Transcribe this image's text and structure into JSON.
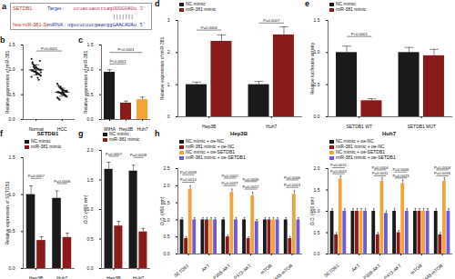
{
  "sequence": {
    "panel": "a",
    "target_name": "SETDB1",
    "target_label": "Target :",
    "target_seq": "ucuacuaucccagUUUGUAUu",
    "target_end": "3'",
    "pairs": "|||||||",
    "mirna_name": "hsa-miR-381-3p",
    "mirna_label": "miRNA :",
    "mirna_seq": "ugucucuucgaacggGAACAUAu",
    "mirna_end": "5'"
  },
  "chart_data": [
    {
      "type": "scatter",
      "panel": "b",
      "y_label": "Relative expression of miR-381",
      "categories": [
        "Normal",
        "HCC"
      ],
      "color": "#1a1a1a",
      "points": [
        [
          1.22,
          1.15,
          1.1,
          1.08,
          1.05,
          1.04,
          1.02,
          1.01,
          1.0,
          1.0,
          0.99,
          0.98,
          0.97,
          0.96,
          0.95,
          0.94,
          0.93,
          0.92,
          0.9,
          0.88,
          0.86,
          1.12,
          1.06,
          1.03,
          0.97,
          0.91,
          0.84,
          0.8,
          1.18,
          0.95
        ],
        [
          0.72,
          0.68,
          0.65,
          0.63,
          0.62,
          0.6,
          0.59,
          0.58,
          0.57,
          0.56,
          0.55,
          0.55,
          0.54,
          0.53,
          0.52,
          0.51,
          0.5,
          0.49,
          0.48,
          0.46,
          0.44,
          0.42,
          0.4,
          0.66,
          0.61,
          0.57,
          0.53,
          0.5,
          0.47,
          0.58
        ]
      ],
      "means": [
        1.0,
        0.55
      ],
      "errors": [
        0.1,
        0.08
      ],
      "ylim": [
        0,
        1.5
      ],
      "yticks": [
        {
          "value": 0,
          "label": "0.0"
        },
        0.5,
        {
          "value": 1,
          "label": "1.0"
        },
        1.5
      ],
      "annotations": [
        {
          "text": "P<0.0001",
          "from": 0,
          "to": 1,
          "y": 1.38
        }
      ]
    },
    {
      "type": "bar",
      "panel": "c",
      "y_label": "Relative expression of miR-381",
      "categories": [
        "MIHA",
        "Hep3B",
        "Huh7"
      ],
      "values": [
        0.95,
        0.33,
        0.4
      ],
      "errors": [
        0.05,
        0.04,
        0.05
      ],
      "colors": [
        "#1a1a1a",
        "#8b1a1a",
        "#f2a33a"
      ],
      "ylim": [
        0,
        1.5
      ],
      "yticks": [
        {
          "value": 0,
          "label": "0.0"
        },
        0.5,
        {
          "value": 1,
          "label": "1.0"
        },
        1.5
      ],
      "annotations": [
        {
          "text": "P<0.0001",
          "from": 0,
          "to": 1,
          "y": 1.12
        },
        {
          "text": "P<0.0001",
          "from": 0,
          "to": 2,
          "y": 1.35
        }
      ]
    },
    {
      "type": "bar",
      "panel": "d",
      "y_label": "Relative expression of miR-381",
      "categories": [
        "Hep3B",
        "Huh7"
      ],
      "legend": "top",
      "series": [
        {
          "name": "NC mimic",
          "color": "#1a1a1a",
          "values": [
            1.0,
            1.0
          ],
          "errors": [
            0.08,
            0.1
          ]
        },
        {
          "name": "miR-381 mimic",
          "color": "#8b1a1a",
          "values": [
            2.35,
            2.55
          ],
          "errors": [
            0.2,
            0.25
          ]
        }
      ],
      "ylim": [
        0,
        3
      ],
      "yticks": [
        0,
        1,
        2,
        3
      ],
      "annotations": [
        {
          "text": "P=0.0006",
          "category": 0,
          "y": 2.7
        },
        {
          "text": "P=0.0007",
          "category": 1,
          "y": 2.92
        }
      ]
    },
    {
      "type": "bar",
      "panel": "e",
      "y_label": "Relative luciferase activity",
      "categories": [
        "SETDB1 WT",
        "SETDB1 MUT"
      ],
      "legend": "top",
      "series": [
        {
          "name": "NC mimic",
          "color": "#1a1a1a",
          "values": [
            1.0,
            1.0
          ],
          "errors": [
            0.1,
            0.08
          ]
        },
        {
          "name": "miR-381 mimic",
          "color": "#8b1a1a",
          "values": [
            0.25,
            0.95
          ],
          "errors": [
            0.03,
            0.1
          ]
        }
      ],
      "ylim": [
        0,
        1.5
      ],
      "yticks": [
        {
          "value": 0,
          "label": "0.0"
        },
        0.5,
        {
          "value": 1,
          "label": "1.0"
        },
        1.5
      ],
      "annotations": [
        {
          "text": "P<0.0001",
          "category": 0,
          "y": 1.25
        }
      ]
    },
    {
      "type": "bar",
      "panel": "f",
      "title": "SETDB1",
      "y_label": "Relative expression of SETDB1",
      "categories": [
        "Hep3B",
        "Huh7"
      ],
      "legend": "top",
      "series": [
        {
          "name": "NC mimic",
          "color": "#1a1a1a",
          "values": [
            1.0,
            0.95
          ],
          "errors": [
            0.12,
            0.1
          ]
        },
        {
          "name": "miR-381 mimic",
          "color": "#8b1a1a",
          "values": [
            0.38,
            0.42
          ],
          "errors": [
            0.05,
            0.06
          ]
        }
      ],
      "ylim": [
        0,
        1.5
      ],
      "yticks": [
        {
          "value": 0,
          "label": "0.0"
        },
        0.5,
        {
          "value": 1,
          "label": "1.0"
        },
        1.5
      ],
      "annotations": [
        {
          "text": "P=0.0007",
          "category": 0,
          "y": 1.22
        },
        {
          "text": "P=0.0006",
          "category": 1,
          "y": 1.15
        }
      ]
    },
    {
      "type": "bar",
      "panel": "g",
      "y_label": "O.D. (450 nm)",
      "categories": [
        "Hep3B",
        "Huh7"
      ],
      "legend": "top",
      "series": [
        {
          "name": "NC mimic",
          "color": "#1a1a1a",
          "values": [
            1.68,
            1.65
          ],
          "errors": [
            0.12,
            0.1
          ]
        },
        {
          "name": "miR-381 mimic",
          "color": "#8b1a1a",
          "values": [
            0.72,
            0.62
          ],
          "errors": [
            0.08,
            0.06
          ]
        }
      ],
      "ylim": [
        0,
        2
      ],
      "yticks": [
        {
          "value": 0,
          "label": "0.0"
        },
        0.5,
        {
          "value": 1,
          "label": "1.0"
        },
        1.5,
        {
          "value": 2,
          "label": "2.0"
        }
      ],
      "annotations": [
        {
          "text": "P=0.0007",
          "category": 0,
          "y": 1.9
        },
        {
          "text": "P=0.0008",
          "category": 1,
          "y": 1.88
        }
      ]
    },
    {
      "type": "bar",
      "panel": "h",
      "title": "Hep3B",
      "y_label": "O.D. (450 nm)",
      "categories": [
        "SETDB1",
        "AKT",
        "P308-AKT",
        "P473-AKT",
        "mTOR",
        "P2448-mTOR"
      ],
      "legend": "top",
      "series": [
        {
          "name": "NC mimic + oe-NC",
          "color": "#1a1a1a",
          "values": [
            1.0,
            1.0,
            1.0,
            1.0,
            1.0,
            1.0
          ],
          "errors": [
            0.06,
            0.06,
            0.06,
            0.06,
            0.06,
            0.06
          ]
        },
        {
          "name": "miR-381 mimic + oe-NC",
          "color": "#8b1a1a",
          "values": [
            0.45,
            1.0,
            0.5,
            0.45,
            1.0,
            0.45
          ],
          "errors": [
            0.05,
            0.06,
            0.05,
            0.05,
            0.06,
            0.05
          ]
        },
        {
          "name": "NC mimic + oe-SETDB1",
          "color": "#f2a33a",
          "values": [
            1.9,
            1.0,
            1.8,
            1.7,
            1.0,
            1.75
          ],
          "errors": [
            0.1,
            0.06,
            0.1,
            0.1,
            0.06,
            0.1
          ]
        },
        {
          "name": "miR-381 mimic + oe-SETDB1",
          "color": "#6b5bd6",
          "values": [
            1.0,
            1.0,
            1.0,
            0.95,
            1.0,
            1.0
          ],
          "errors": [
            0.06,
            0.06,
            0.06,
            0.06,
            0.06,
            0.06
          ]
        }
      ],
      "ylim": [
        0,
        2.5
      ],
      "yticks": [
        {
          "value": 0,
          "label": "0.0"
        },
        0.5,
        {
          "value": 1,
          "label": "1.0"
        },
        1.5,
        {
          "value": 2,
          "label": "2.0"
        },
        2.5
      ],
      "annotations": [
        {
          "text": "P=0.0014",
          "category": 0,
          "y": 2.1
        },
        {
          "text": "P=0.0008",
          "category": 0,
          "y": 2.32
        },
        {
          "text": "P=0.0027",
          "category": 2,
          "y": 2.0
        },
        {
          "text": "P=0.0002",
          "category": 2,
          "y": 2.22
        },
        {
          "text": "P=0.0012",
          "category": 3,
          "y": 1.9
        },
        {
          "text": "P=0.0005",
          "category": 3,
          "y": 2.12
        },
        {
          "text": "P=0.0013",
          "category": 5,
          "y": 1.95
        },
        {
          "text": "P=0.0006",
          "category": 5,
          "y": 2.17
        }
      ]
    },
    {
      "type": "bar",
      "title": "Huh7",
      "y_label": "O.D. (450 nm)",
      "categories": [
        "SETDB1",
        "AKT",
        "P308-AKT",
        "P473-AKT",
        "mTOR",
        "P2448-mTOR"
      ],
      "legend": "top",
      "series": [
        {
          "name": "NC mimic + oe-NC",
          "color": "#1a1a1a",
          "values": [
            1.0,
            1.0,
            1.0,
            1.0,
            1.0,
            1.0
          ],
          "errors": [
            0.06,
            0.06,
            0.06,
            0.06,
            0.06,
            0.06
          ]
        },
        {
          "name": "miR-381 mimic + oe-NC",
          "color": "#8b1a1a",
          "values": [
            0.45,
            1.0,
            0.45,
            0.5,
            1.0,
            0.45
          ],
          "errors": [
            0.05,
            0.06,
            0.05,
            0.05,
            0.06,
            0.05
          ]
        },
        {
          "name": "NC mimic + oe-SETDB1",
          "color": "#f2a33a",
          "values": [
            1.75,
            1.0,
            1.7,
            1.65,
            1.0,
            1.7
          ],
          "errors": [
            0.08,
            0.06,
            0.08,
            0.08,
            0.06,
            0.08
          ]
        },
        {
          "name": "miR-381 mimic + oe-SETDB1",
          "color": "#6b5bd6",
          "values": [
            1.0,
            1.0,
            0.95,
            1.0,
            1.0,
            1.0
          ],
          "errors": [
            0.06,
            0.06,
            0.06,
            0.06,
            0.06,
            0.06
          ]
        }
      ],
      "ylim": [
        0,
        2
      ],
      "yticks": [
        {
          "value": 0,
          "label": "0.0"
        },
        0.5,
        {
          "value": 1,
          "label": "1.0"
        },
        1.5,
        {
          "value": 2,
          "label": "2.0"
        }
      ],
      "annotations": [
        {
          "text": "P=0.0024",
          "category": 0,
          "y": 1.88
        },
        {
          "text": "P=0.0011",
          "category": 0,
          "y": 2.02
        },
        {
          "text": "P=0.0011",
          "category": 2,
          "y": 1.83
        },
        {
          "text": "P=0.0004",
          "category": 2,
          "y": 1.97
        },
        {
          "text": "P=0.0023",
          "category": 3,
          "y": 1.78
        },
        {
          "text": "P=0.0006",
          "category": 3,
          "y": 1.92
        },
        {
          "text": "P=0.0016",
          "category": 5,
          "y": 1.83
        },
        {
          "text": "P=0.0004",
          "category": 5,
          "y": 1.97
        }
      ]
    }
  ]
}
